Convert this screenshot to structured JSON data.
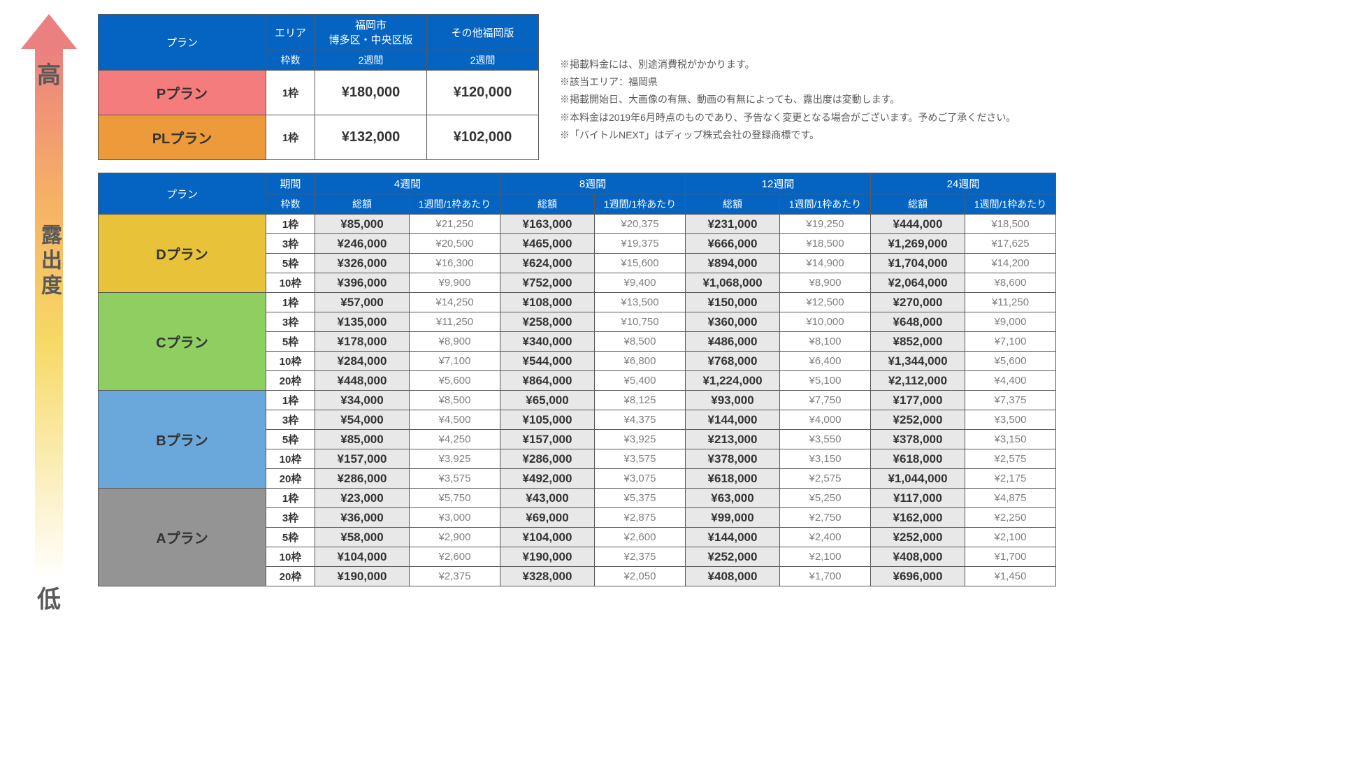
{
  "exposure": {
    "high": "高",
    "mid": "露出度",
    "low": "低"
  },
  "topTable": {
    "plan_header": "プラン",
    "area_header": "エリア",
    "slots_header": "枠数",
    "areas": [
      "福岡市\n博多区・中央区版",
      "その他福岡版"
    ],
    "duration": "2週間",
    "rows": [
      {
        "name": "Pプラン",
        "cls": "plan-p",
        "slots": "1枠",
        "prices": [
          "¥180,000",
          "¥120,000"
        ]
      },
      {
        "name": "PLプラン",
        "cls": "plan-pl",
        "slots": "1枠",
        "prices": [
          "¥132,000",
          "¥102,000"
        ]
      }
    ]
  },
  "notes": [
    "掲載料金には、別途消費税がかかります。",
    "該当エリア：福岡県",
    "掲載開始日、大画像の有無、動画の有無によっても、露出度は変動します。",
    "本料金は2019年6月時点のものであり、予告なく変更となる場合がございます。予めご了承ください。",
    "「バイトルNEXT」はディップ株式会社の登録商標です。"
  ],
  "mainTable": {
    "plan_header": "プラン",
    "period_header": "期間",
    "slots_header": "枠数",
    "total_header": "総額",
    "per_header": "1週間/1枠あたり",
    "periods": [
      "4週間",
      "8週間",
      "12週間",
      "24週間"
    ],
    "plans": [
      {
        "name": "Dプラン",
        "cls": "plan-d",
        "rows": [
          {
            "slots": "1枠",
            "vals": [
              [
                "¥85,000",
                "¥21,250"
              ],
              [
                "¥163,000",
                "¥20,375"
              ],
              [
                "¥231,000",
                "¥19,250"
              ],
              [
                "¥444,000",
                "¥18,500"
              ]
            ]
          },
          {
            "slots": "3枠",
            "vals": [
              [
                "¥246,000",
                "¥20,500"
              ],
              [
                "¥465,000",
                "¥19,375"
              ],
              [
                "¥666,000",
                "¥18,500"
              ],
              [
                "¥1,269,000",
                "¥17,625"
              ]
            ]
          },
          {
            "slots": "5枠",
            "vals": [
              [
                "¥326,000",
                "¥16,300"
              ],
              [
                "¥624,000",
                "¥15,600"
              ],
              [
                "¥894,000",
                "¥14,900"
              ],
              [
                "¥1,704,000",
                "¥14,200"
              ]
            ]
          },
          {
            "slots": "10枠",
            "vals": [
              [
                "¥396,000",
                "¥9,900"
              ],
              [
                "¥752,000",
                "¥9,400"
              ],
              [
                "¥1,068,000",
                "¥8,900"
              ],
              [
                "¥2,064,000",
                "¥8,600"
              ]
            ]
          }
        ]
      },
      {
        "name": "Cプラン",
        "cls": "plan-c",
        "rows": [
          {
            "slots": "1枠",
            "vals": [
              [
                "¥57,000",
                "¥14,250"
              ],
              [
                "¥108,000",
                "¥13,500"
              ],
              [
                "¥150,000",
                "¥12,500"
              ],
              [
                "¥270,000",
                "¥11,250"
              ]
            ]
          },
          {
            "slots": "3枠",
            "vals": [
              [
                "¥135,000",
                "¥11,250"
              ],
              [
                "¥258,000",
                "¥10,750"
              ],
              [
                "¥360,000",
                "¥10,000"
              ],
              [
                "¥648,000",
                "¥9,000"
              ]
            ]
          },
          {
            "slots": "5枠",
            "vals": [
              [
                "¥178,000",
                "¥8,900"
              ],
              [
                "¥340,000",
                "¥8,500"
              ],
              [
                "¥486,000",
                "¥8,100"
              ],
              [
                "¥852,000",
                "¥7,100"
              ]
            ]
          },
          {
            "slots": "10枠",
            "vals": [
              [
                "¥284,000",
                "¥7,100"
              ],
              [
                "¥544,000",
                "¥6,800"
              ],
              [
                "¥768,000",
                "¥6,400"
              ],
              [
                "¥1,344,000",
                "¥5,600"
              ]
            ]
          },
          {
            "slots": "20枠",
            "vals": [
              [
                "¥448,000",
                "¥5,600"
              ],
              [
                "¥864,000",
                "¥5,400"
              ],
              [
                "¥1,224,000",
                "¥5,100"
              ],
              [
                "¥2,112,000",
                "¥4,400"
              ]
            ]
          }
        ]
      },
      {
        "name": "Bプラン",
        "cls": "plan-b",
        "rows": [
          {
            "slots": "1枠",
            "vals": [
              [
                "¥34,000",
                "¥8,500"
              ],
              [
                "¥65,000",
                "¥8,125"
              ],
              [
                "¥93,000",
                "¥7,750"
              ],
              [
                "¥177,000",
                "¥7,375"
              ]
            ]
          },
          {
            "slots": "3枠",
            "vals": [
              [
                "¥54,000",
                "¥4,500"
              ],
              [
                "¥105,000",
                "¥4,375"
              ],
              [
                "¥144,000",
                "¥4,000"
              ],
              [
                "¥252,000",
                "¥3,500"
              ]
            ]
          },
          {
            "slots": "5枠",
            "vals": [
              [
                "¥85,000",
                "¥4,250"
              ],
              [
                "¥157,000",
                "¥3,925"
              ],
              [
                "¥213,000",
                "¥3,550"
              ],
              [
                "¥378,000",
                "¥3,150"
              ]
            ]
          },
          {
            "slots": "10枠",
            "vals": [
              [
                "¥157,000",
                "¥3,925"
              ],
              [
                "¥286,000",
                "¥3,575"
              ],
              [
                "¥378,000",
                "¥3,150"
              ],
              [
                "¥618,000",
                "¥2,575"
              ]
            ]
          },
          {
            "slots": "20枠",
            "vals": [
              [
                "¥286,000",
                "¥3,575"
              ],
              [
                "¥492,000",
                "¥3,075"
              ],
              [
                "¥618,000",
                "¥2,575"
              ],
              [
                "¥1,044,000",
                "¥2,175"
              ]
            ]
          }
        ]
      },
      {
        "name": "Aプラン",
        "cls": "plan-a",
        "rows": [
          {
            "slots": "1枠",
            "vals": [
              [
                "¥23,000",
                "¥5,750"
              ],
              [
                "¥43,000",
                "¥5,375"
              ],
              [
                "¥63,000",
                "¥5,250"
              ],
              [
                "¥117,000",
                "¥4,875"
              ]
            ]
          },
          {
            "slots": "3枠",
            "vals": [
              [
                "¥36,000",
                "¥3,000"
              ],
              [
                "¥69,000",
                "¥2,875"
              ],
              [
                "¥99,000",
                "¥2,750"
              ],
              [
                "¥162,000",
                "¥2,250"
              ]
            ]
          },
          {
            "slots": "5枠",
            "vals": [
              [
                "¥58,000",
                "¥2,900"
              ],
              [
                "¥104,000",
                "¥2,600"
              ],
              [
                "¥144,000",
                "¥2,400"
              ],
              [
                "¥252,000",
                "¥2,100"
              ]
            ]
          },
          {
            "slots": "10枠",
            "vals": [
              [
                "¥104,000",
                "¥2,600"
              ],
              [
                "¥190,000",
                "¥2,375"
              ],
              [
                "¥252,000",
                "¥2,100"
              ],
              [
                "¥408,000",
                "¥1,700"
              ]
            ]
          },
          {
            "slots": "20枠",
            "vals": [
              [
                "¥190,000",
                "¥2,375"
              ],
              [
                "¥328,000",
                "¥2,050"
              ],
              [
                "¥408,000",
                "¥1,700"
              ],
              [
                "¥696,000",
                "¥1,450"
              ]
            ]
          }
        ]
      }
    ]
  }
}
